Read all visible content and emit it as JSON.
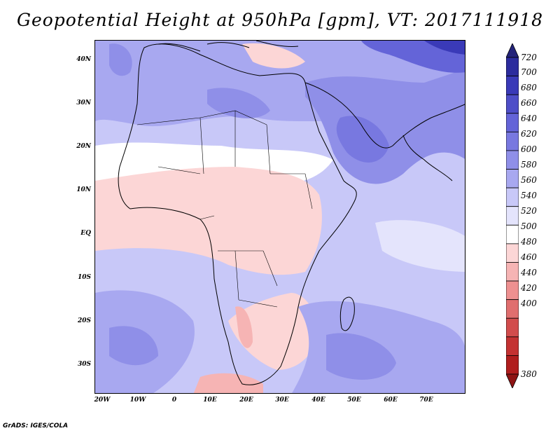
{
  "title": "Geopotential Height at 950hPa [gpm], VT: 2017111918",
  "credit": "GrADS: IGES/COLA",
  "map": {
    "region": "Africa",
    "lon_range": [
      -25,
      80
    ],
    "lat_range": [
      -38,
      45
    ],
    "lat_labels": [
      "40N",
      "30N",
      "20N",
      "10N",
      "EQ",
      "10S",
      "20S",
      "30S"
    ],
    "lon_labels": [
      "20W",
      "10W",
      "0",
      "10E",
      "20E",
      "30E",
      "40E",
      "50E",
      "60E",
      "70E"
    ]
  },
  "colorbar": {
    "labels": [
      "720",
      "700",
      "680",
      "660",
      "640",
      "620",
      "600",
      "580",
      "560",
      "540",
      "520",
      "500",
      "480",
      "460",
      "440",
      "420",
      "400",
      "380"
    ],
    "colors": [
      "#23237a",
      "#2c2c9e",
      "#3a3ab8",
      "#4e4ec8",
      "#6464d8",
      "#7878e0",
      "#8f8fe8",
      "#a8a8f0",
      "#c8c8f8",
      "#e4e4fc",
      "#ffffff",
      "#fcd6d6",
      "#f6b4b4",
      "#ee9090",
      "#e06e6e",
      "#d24c4c",
      "#c43232",
      "#b01e1e",
      "#8e1414"
    ]
  }
}
